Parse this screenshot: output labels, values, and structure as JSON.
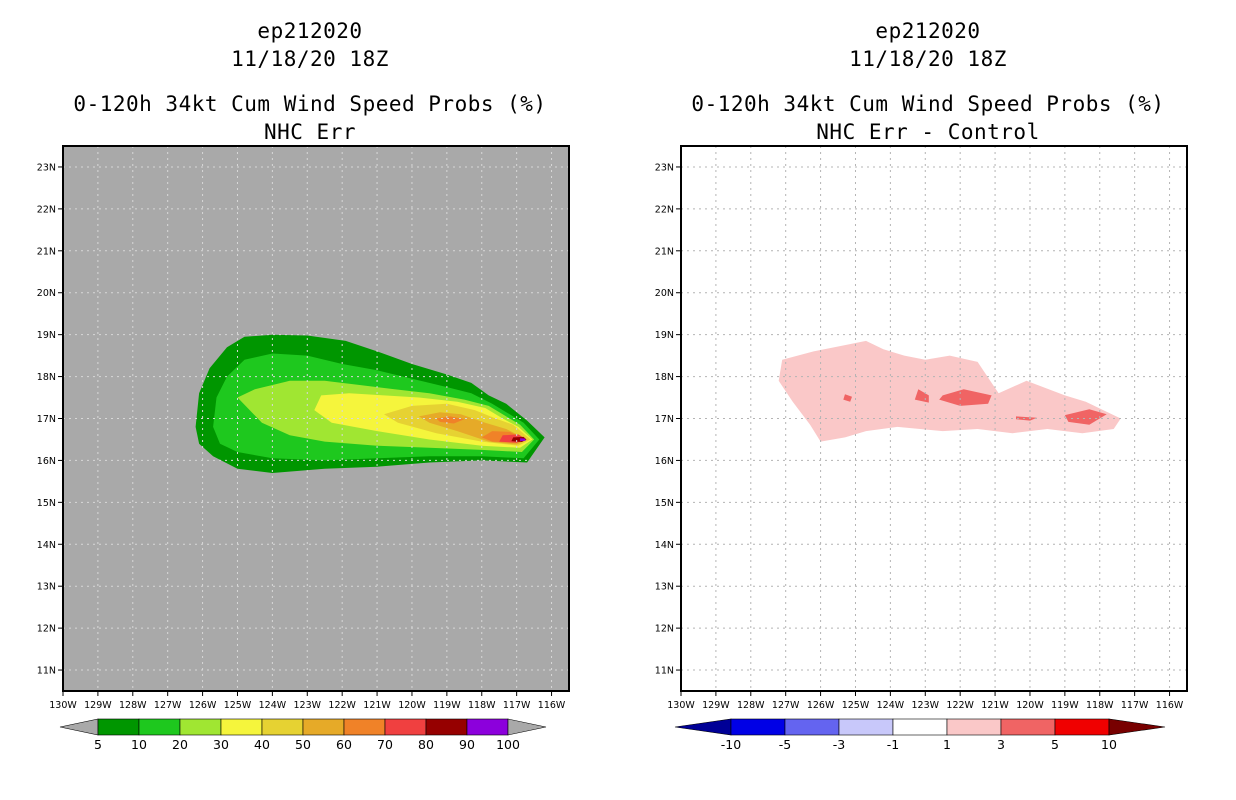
{
  "left_panel": {
    "title_line1": "ep212020",
    "title_line2": "11/18/20 18Z",
    "title_line3": "0-120h 34kt Cum Wind Speed Probs (%)",
    "title_line4": "NHC Err"
  },
  "right_panel": {
    "title_line1": "ep212020",
    "title_line2": "11/18/20 18Z",
    "title_line3": "0-120h 34kt Cum Wind Speed Probs (%)",
    "title_line4": "NHC Err - Control"
  },
  "chart_data": [
    {
      "type": "heatmap",
      "title": "0-120h 34kt Cum Wind Speed Probs (%)",
      "subtitle": "NHC Err",
      "x_ticks": [
        "130W",
        "129W",
        "128W",
        "127W",
        "126W",
        "125W",
        "124W",
        "123W",
        "122W",
        "121W",
        "120W",
        "119W",
        "118W",
        "117W",
        "116W"
      ],
      "y_ticks": [
        "11N",
        "12N",
        "13N",
        "14N",
        "15N",
        "16N",
        "17N",
        "18N",
        "19N",
        "20N",
        "21N",
        "22N",
        "23N"
      ],
      "xlim": [
        -130,
        -115.5
      ],
      "ylim": [
        10.5,
        23.5
      ],
      "background_color": "#a9a9a9",
      "grid": true,
      "colorbar": {
        "levels": [
          "5",
          "10",
          "20",
          "30",
          "40",
          "50",
          "60",
          "70",
          "80",
          "90",
          "100"
        ],
        "colors": [
          "#009600",
          "#1ec81e",
          "#a0e632",
          "#f5f53c",
          "#e6d232",
          "#e6aa28",
          "#f08228",
          "#f04040",
          "#960000",
          "#8c00dc"
        ],
        "under_color": "#a9a9a9",
        "over_color": "#a9a9a9"
      },
      "contours": [
        {
          "level": 5,
          "color": "#009600",
          "points": [
            [
              -126.2,
              16.8
            ],
            [
              -126.1,
              17.6
            ],
            [
              -125.8,
              18.2
            ],
            [
              -125.3,
              18.7
            ],
            [
              -124.8,
              18.95
            ],
            [
              -124.0,
              19.0
            ],
            [
              -123.0,
              18.98
            ],
            [
              -121.9,
              18.85
            ],
            [
              -121.0,
              18.6
            ],
            [
              -120.0,
              18.3
            ],
            [
              -119.0,
              18.05
            ],
            [
              -118.3,
              17.85
            ],
            [
              -117.8,
              17.55
            ],
            [
              -117.3,
              17.35
            ],
            [
              -116.7,
              16.95
            ],
            [
              -116.2,
              16.55
            ],
            [
              -116.7,
              15.95
            ],
            [
              -118.0,
              16.0
            ],
            [
              -119.5,
              15.95
            ],
            [
              -121.0,
              15.85
            ],
            [
              -122.5,
              15.8
            ],
            [
              -124.0,
              15.7
            ],
            [
              -125.0,
              15.8
            ],
            [
              -125.7,
              16.1
            ],
            [
              -126.1,
              16.4
            ]
          ]
        },
        {
          "level": 10,
          "color": "#1ec81e",
          "points": [
            [
              -125.7,
              16.8
            ],
            [
              -125.6,
              17.5
            ],
            [
              -125.3,
              18.0
            ],
            [
              -124.8,
              18.4
            ],
            [
              -124.0,
              18.55
            ],
            [
              -123.0,
              18.5
            ],
            [
              -122.0,
              18.3
            ],
            [
              -121.0,
              18.15
            ],
            [
              -120.0,
              17.95
            ],
            [
              -119.0,
              17.75
            ],
            [
              -118.3,
              17.6
            ],
            [
              -117.7,
              17.35
            ],
            [
              -117.3,
              17.15
            ],
            [
              -116.8,
              16.9
            ],
            [
              -116.35,
              16.5
            ],
            [
              -116.8,
              16.05
            ],
            [
              -118.0,
              16.1
            ],
            [
              -119.5,
              16.1
            ],
            [
              -121.0,
              16.05
            ],
            [
              -122.5,
              16.0
            ],
            [
              -124.0,
              16.05
            ],
            [
              -125.0,
              16.2
            ],
            [
              -125.5,
              16.4
            ]
          ]
        },
        {
          "level": 20,
          "color": "#a0e632",
          "points": [
            [
              -125.0,
              17.5
            ],
            [
              -124.5,
              17.7
            ],
            [
              -123.5,
              17.9
            ],
            [
              -122.5,
              17.9
            ],
            [
              -121.5,
              17.8
            ],
            [
              -120.5,
              17.7
            ],
            [
              -119.5,
              17.6
            ],
            [
              -118.5,
              17.45
            ],
            [
              -117.8,
              17.3
            ],
            [
              -117.3,
              17.05
            ],
            [
              -116.9,
              16.85
            ],
            [
              -116.5,
              16.5
            ],
            [
              -116.85,
              16.2
            ],
            [
              -118.0,
              16.25
            ],
            [
              -119.5,
              16.3
            ],
            [
              -121.0,
              16.35
            ],
            [
              -122.5,
              16.45
            ],
            [
              -123.5,
              16.6
            ],
            [
              -124.3,
              16.9
            ]
          ]
        },
        {
          "level": 30,
          "color": "#f5f53c",
          "points": [
            [
              -122.8,
              17.2
            ],
            [
              -122.6,
              17.55
            ],
            [
              -121.8,
              17.6
            ],
            [
              -120.8,
              17.55
            ],
            [
              -119.8,
              17.5
            ],
            [
              -118.7,
              17.4
            ],
            [
              -117.9,
              17.25
            ],
            [
              -117.4,
              17.0
            ],
            [
              -116.95,
              16.8
            ],
            [
              -116.55,
              16.5
            ],
            [
              -116.9,
              16.3
            ],
            [
              -118.0,
              16.35
            ],
            [
              -119.5,
              16.5
            ],
            [
              -121.0,
              16.7
            ],
            [
              -122.3,
              16.9
            ]
          ]
        },
        {
          "level": 40,
          "color": "#e6d232",
          "points": [
            [
              -120.8,
              17.1
            ],
            [
              -120.0,
              17.3
            ],
            [
              -119.0,
              17.35
            ],
            [
              -118.2,
              17.2
            ],
            [
              -117.6,
              17.0
            ],
            [
              -117.1,
              16.85
            ],
            [
              -116.6,
              16.5
            ],
            [
              -116.95,
              16.35
            ],
            [
              -118.0,
              16.45
            ],
            [
              -119.3,
              16.65
            ],
            [
              -120.4,
              16.9
            ]
          ]
        },
        {
          "level": 50,
          "color": "#e6aa28",
          "points": [
            [
              -119.8,
              17.05
            ],
            [
              -119.2,
              17.15
            ],
            [
              -118.6,
              17.1
            ],
            [
              -117.9,
              16.9
            ],
            [
              -117.3,
              16.75
            ],
            [
              -116.7,
              16.5
            ],
            [
              -117.0,
              16.38
            ],
            [
              -117.8,
              16.45
            ],
            [
              -118.7,
              16.7
            ],
            [
              -119.5,
              16.9
            ]
          ]
        },
        {
          "level": 60,
          "color": "#f08228",
          "points": [
            [
              -119.3,
              17.0
            ],
            [
              -118.9,
              17.05
            ],
            [
              -118.5,
              16.98
            ],
            [
              -118.8,
              16.88
            ],
            [
              -119.2,
              16.92
            ]
          ]
        },
        {
          "level": 60,
          "color": "#f08228",
          "points": [
            [
              -117.7,
              16.7
            ],
            [
              -117.2,
              16.68
            ],
            [
              -116.8,
              16.52
            ],
            [
              -117.1,
              16.42
            ],
            [
              -117.7,
              16.45
            ],
            [
              -118.0,
              16.55
            ]
          ]
        },
        {
          "level": 70,
          "color": "#f04040",
          "points": [
            [
              -117.4,
              16.6
            ],
            [
              -116.95,
              16.62
            ],
            [
              -116.72,
              16.5
            ],
            [
              -117.0,
              16.42
            ],
            [
              -117.5,
              16.45
            ]
          ]
        },
        {
          "level": 80,
          "color": "#960000",
          "points": [
            [
              -117.1,
              16.55
            ],
            [
              -116.8,
              16.56
            ],
            [
              -116.72,
              16.5
            ],
            [
              -116.85,
              16.44
            ],
            [
              -117.15,
              16.46
            ]
          ]
        },
        {
          "level": 90,
          "color": "#8c00dc",
          "points": [
            [
              -116.9,
              16.53
            ],
            [
              -116.76,
              16.52
            ],
            [
              -116.74,
              16.47
            ],
            [
              -116.9,
              16.46
            ]
          ]
        }
      ]
    },
    {
      "type": "heatmap",
      "title": "0-120h 34kt Cum Wind Speed Probs (%)",
      "subtitle": "NHC Err - Control",
      "x_ticks": [
        "130W",
        "129W",
        "128W",
        "127W",
        "126W",
        "125W",
        "124W",
        "123W",
        "122W",
        "121W",
        "120W",
        "119W",
        "118W",
        "117W",
        "116W"
      ],
      "y_ticks": [
        "11N",
        "12N",
        "13N",
        "14N",
        "15N",
        "16N",
        "17N",
        "18N",
        "19N",
        "20N",
        "21N",
        "22N",
        "23N"
      ],
      "xlim": [
        -130,
        -115.5
      ],
      "ylim": [
        10.5,
        23.5
      ],
      "background_color": "#ffffff",
      "grid": true,
      "colorbar": {
        "levels": [
          "-10",
          "-5",
          "-3",
          "-1",
          "1",
          "3",
          "5",
          "10"
        ],
        "colors": [
          "#0000e6",
          "#6464f0",
          "#c8c8fa",
          "#ffffff",
          "#fac8c8",
          "#f06464",
          "#f00000"
        ],
        "under_color": "#000096",
        "over_color": "#780000"
      },
      "contours": [
        {
          "level": 1,
          "color": "#fac8c8",
          "points": [
            [
              -127.1,
              18.4
            ],
            [
              -126.2,
              18.6
            ],
            [
              -125.3,
              18.75
            ],
            [
              -124.7,
              18.85
            ],
            [
              -124.2,
              18.65
            ],
            [
              -123.6,
              18.5
            ],
            [
              -123.0,
              18.4
            ],
            [
              -122.3,
              18.5
            ],
            [
              -121.5,
              18.35
            ],
            [
              -120.9,
              17.6
            ],
            [
              -120.1,
              17.9
            ],
            [
              -119.0,
              17.55
            ],
            [
              -118.4,
              17.4
            ],
            [
              -117.9,
              17.2
            ],
            [
              -117.4,
              17.0
            ],
            [
              -117.6,
              16.75
            ],
            [
              -118.5,
              16.65
            ],
            [
              -119.5,
              16.75
            ],
            [
              -120.5,
              16.65
            ],
            [
              -121.5,
              16.75
            ],
            [
              -122.5,
              16.7
            ],
            [
              -123.8,
              16.8
            ],
            [
              -124.7,
              16.7
            ],
            [
              -125.3,
              16.55
            ],
            [
              -126.0,
              16.45
            ],
            [
              -126.3,
              16.85
            ],
            [
              -126.8,
              17.4
            ],
            [
              -127.2,
              17.9
            ]
          ]
        },
        {
          "level": 3,
          "color": "#f06464",
          "points": [
            [
              -125.3,
              17.58
            ],
            [
              -125.1,
              17.52
            ],
            [
              -125.15,
              17.4
            ],
            [
              -125.35,
              17.45
            ]
          ]
        },
        {
          "level": 3,
          "color": "#f06464",
          "points": [
            [
              -123.2,
              17.7
            ],
            [
              -122.9,
              17.55
            ],
            [
              -122.9,
              17.38
            ],
            [
              -123.3,
              17.45
            ]
          ]
        },
        {
          "level": 3,
          "color": "#f06464",
          "points": [
            [
              -122.5,
              17.55
            ],
            [
              -121.9,
              17.7
            ],
            [
              -121.1,
              17.55
            ],
            [
              -121.2,
              17.35
            ],
            [
              -122.0,
              17.3
            ],
            [
              -122.6,
              17.45
            ]
          ]
        },
        {
          "level": 3,
          "color": "#f06464",
          "points": [
            [
              -120.4,
              17.05
            ],
            [
              -119.8,
              17.02
            ],
            [
              -120.0,
              16.95
            ],
            [
              -120.4,
              16.98
            ]
          ]
        },
        {
          "level": 3,
          "color": "#f06464",
          "points": [
            [
              -119.0,
              17.08
            ],
            [
              -118.3,
              17.22
            ],
            [
              -117.8,
              17.1
            ],
            [
              -118.3,
              16.85
            ],
            [
              -118.9,
              16.92
            ]
          ]
        }
      ]
    }
  ]
}
